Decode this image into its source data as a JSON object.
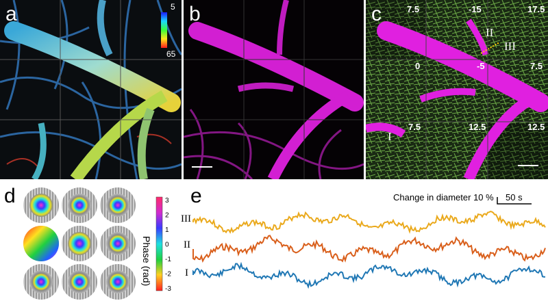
{
  "panels": {
    "a": {
      "label": "a",
      "colorbar_top": "5",
      "colorbar_bottom": "65"
    },
    "b": {
      "label": "b"
    },
    "c": {
      "label": "c",
      "tile_values": [
        "7.5",
        "-15",
        "17.5",
        "0",
        "-5",
        "7.5",
        "7.5",
        "12.5",
        "12.5"
      ],
      "vessel_labels": [
        "II",
        "III",
        "I"
      ]
    },
    "d": {
      "label": "d",
      "colorbar_label": "Phase (rad)",
      "ticks": [
        "3",
        "2",
        "1",
        "0",
        "-1",
        "-2",
        "-3"
      ]
    },
    "e": {
      "label": "e",
      "scale_text": "Change in diameter 10 %",
      "time_scale": "50 s",
      "trace_labels": [
        "III",
        "II",
        "I"
      ]
    }
  },
  "colors": {
    "vessel": "#d21fd2",
    "neuron": "#7ec850",
    "trace_I": "#1f77b4",
    "trace_II": "#d95f1b",
    "trace_III": "#eaa91c"
  },
  "chart_data": {
    "type": "line",
    "series": [
      {
        "name": "III",
        "color": "#eaa91c"
      },
      {
        "name": "II",
        "color": "#d95f1b"
      },
      {
        "name": "I",
        "color": "#1f77b4"
      }
    ]
  }
}
